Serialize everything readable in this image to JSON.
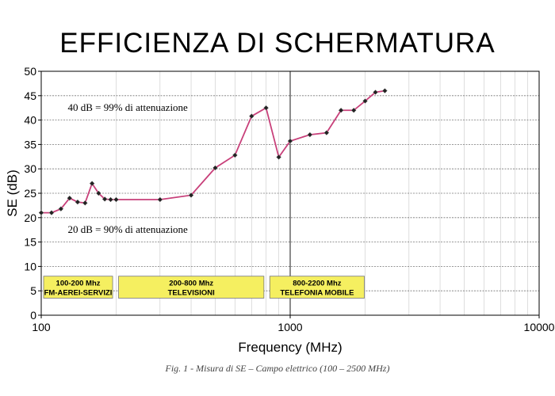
{
  "title": "EFFICIENZA DI SCHERMATURA",
  "caption": "Fig. 1 - Misura di SE – Campo elettrico (100 – 2500 MHz)",
  "colors": {
    "line": "#c8407a",
    "marker": "#222222",
    "band_fill": "#f5ef60",
    "grid": "#777777",
    "background": "#ffffff"
  },
  "chart_data": {
    "type": "line",
    "xlabel": "Frequency (MHz)",
    "ylabel": "SE (dB)",
    "xscale": "log",
    "xlim": [
      100,
      10000
    ],
    "ylim": [
      0,
      50
    ],
    "grid": true,
    "x_ticks": [
      "100",
      "1000",
      "10000"
    ],
    "y_ticks": [
      "0",
      "5",
      "10",
      "15",
      "20",
      "25",
      "30",
      "35",
      "40",
      "45",
      "50"
    ],
    "series": [
      {
        "x": [
          100,
          110,
          120,
          130,
          140,
          150,
          160,
          170,
          180,
          190,
          200,
          300,
          400,
          500,
          600,
          700,
          800,
          900,
          1000,
          1200,
          1400,
          1600,
          1800,
          2000,
          2200,
          2400
        ],
        "y": [
          21.0,
          21.0,
          21.8,
          24.0,
          23.2,
          23.0,
          27.0,
          25.0,
          23.8,
          23.7,
          23.7,
          23.7,
          24.6,
          30.2,
          32.8,
          40.8,
          42.5,
          32.4,
          35.7,
          37.0,
          37.4,
          42.0,
          42.0,
          43.9,
          45.7,
          46.0
        ]
      }
    ],
    "annotations": [
      {
        "text": "40 dB = 99% di attenuazione",
        "x": 112,
        "y": 42.5
      },
      {
        "text": "20 dB = 90% di attenuazione",
        "x": 112,
        "y": 17.5
      }
    ],
    "bands": [
      {
        "line1": "100-200  Mhz",
        "line2": "FM-AEREI-SERVIZI",
        "x_start": 100,
        "x_end": 195
      },
      {
        "line1": "200-800  Mhz",
        "line2": "TELEVISIONI",
        "x_start": 200,
        "x_end": 790
      },
      {
        "line1": "800-2200  Mhz",
        "line2": "TELEFONIA MOBILE",
        "x_start": 810,
        "x_end": 2000
      }
    ]
  }
}
